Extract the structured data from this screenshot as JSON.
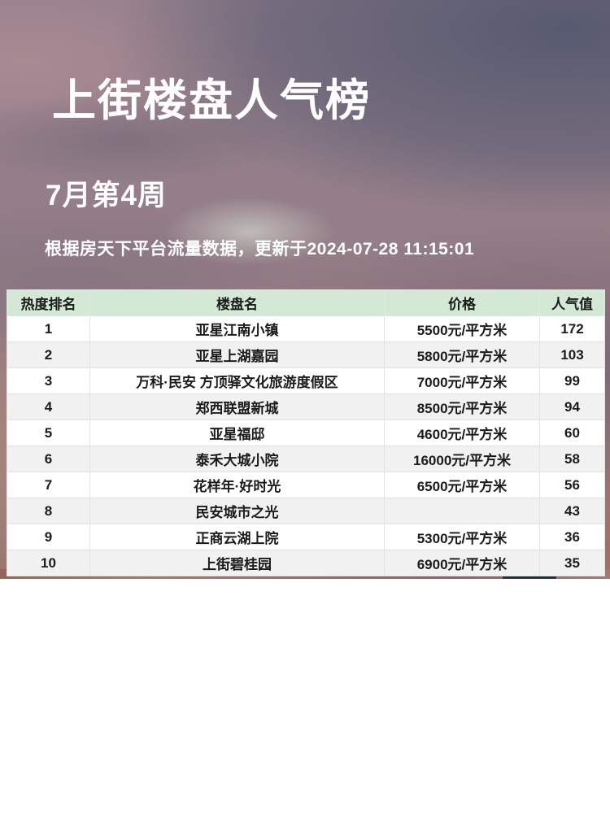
{
  "poster": {
    "title": "上街楼盘人气榜",
    "period": "7月第4周",
    "source_note": "根据房天下平台流量数据，更新于2024-07-28 11:15:01"
  },
  "table": {
    "columns": [
      "热度排名",
      "楼盘名",
      "价格",
      "人气值"
    ],
    "rows": [
      {
        "rank": "1",
        "name": "亚星江南小镇",
        "price": "5500元/平方米",
        "popularity": "172"
      },
      {
        "rank": "2",
        "name": "亚星上湖嘉园",
        "price": "5800元/平方米",
        "popularity": "103"
      },
      {
        "rank": "3",
        "name": "万科·民安 方顶驿文化旅游度假区",
        "price": "7000元/平方米",
        "popularity": "99"
      },
      {
        "rank": "4",
        "name": "郑西联盟新城",
        "price": "8500元/平方米",
        "popularity": "94"
      },
      {
        "rank": "5",
        "name": "亚星福邸",
        "price": "4600元/平方米",
        "popularity": "60"
      },
      {
        "rank": "6",
        "name": "泰禾大城小院",
        "price": "16000元/平方米",
        "popularity": "58"
      },
      {
        "rank": "7",
        "name": "花样年·好时光",
        "price": "6500元/平方米",
        "popularity": "56"
      },
      {
        "rank": "8",
        "name": "民安城市之光",
        "price": "",
        "popularity": "43"
      },
      {
        "rank": "9",
        "name": "正商云湖上院",
        "price": "5300元/平方米",
        "popularity": "36"
      },
      {
        "rank": "10",
        "name": "上街碧桂园",
        "price": "6900元/平方米",
        "popularity": "35"
      }
    ]
  },
  "chart_data": {
    "type": "table",
    "title": "上街楼盘人气榜",
    "subtitle": "7月第4周",
    "note": "根据房天下平台流量数据，更新于2024-07-28 11:15:01",
    "columns": [
      "热度排名",
      "楼盘名",
      "价格",
      "人气值"
    ],
    "rows": [
      [
        1,
        "亚星江南小镇",
        "5500元/平方米",
        172
      ],
      [
        2,
        "亚星上湖嘉园",
        "5800元/平方米",
        103
      ],
      [
        3,
        "万科·民安 方顶驿文化旅游度假区",
        "7000元/平方米",
        99
      ],
      [
        4,
        "郑西联盟新城",
        "8500元/平方米",
        94
      ],
      [
        5,
        "亚星福邸",
        "4600元/平方米",
        60
      ],
      [
        6,
        "泰禾大城小院",
        "16000元/平方米",
        58
      ],
      [
        7,
        "花样年·好时光",
        "6500元/平方米",
        56
      ],
      [
        8,
        "民安城市之光",
        "",
        43
      ],
      [
        9,
        "正商云湖上院",
        "5300元/平方米",
        36
      ],
      [
        10,
        "上街碧桂园",
        "6900元/平方米",
        35
      ]
    ]
  },
  "colors": {
    "header_green": "#d4e9d5",
    "row_alt_gray": "#f1f1f1",
    "table_text": "#1b1b1b",
    "navy_patch": "#1f3340"
  }
}
